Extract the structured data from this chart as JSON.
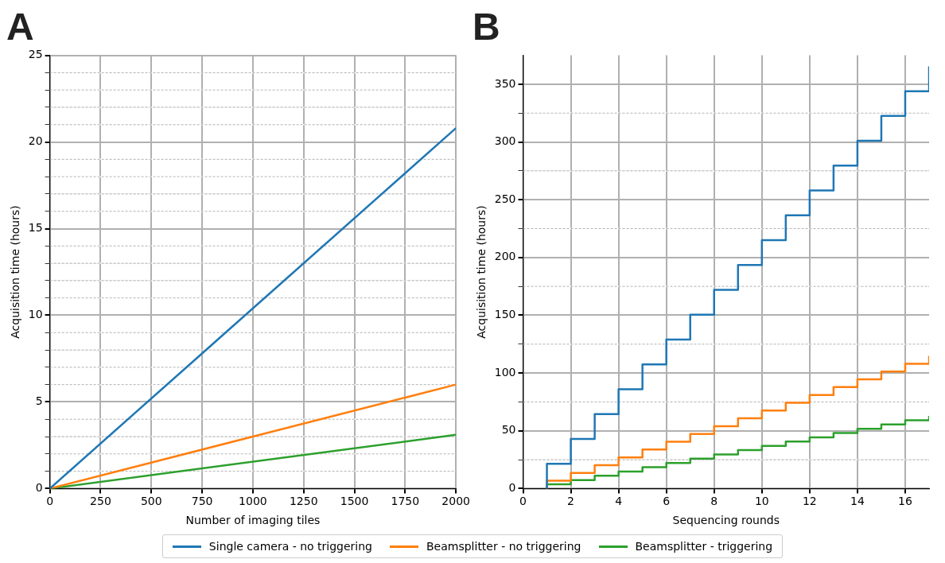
{
  "chart_data": [
    {
      "type": "line",
      "title": "A",
      "xlabel": "Number of imaging tiles",
      "ylabel": "Acquisition time (hours)",
      "x": [
        0,
        2000
      ],
      "xlim": [
        0,
        2000
      ],
      "xticks": [
        0,
        250,
        500,
        750,
        1000,
        1250,
        1500,
        1750,
        2000
      ],
      "ylim": [
        0,
        25
      ],
      "yticks": [
        0,
        {
          "value": 1,
          "label": null
        },
        {
          "value": 2,
          "label": null
        },
        {
          "value": 3,
          "label": null
        },
        {
          "value": 4,
          "label": null
        },
        5,
        {
          "value": 6,
          "label": null
        },
        {
          "value": 7,
          "label": null
        },
        {
          "value": 8,
          "label": null
        },
        {
          "value": 9,
          "label": null
        },
        10,
        {
          "value": 11,
          "label": null
        },
        {
          "value": 12,
          "label": null
        },
        {
          "value": 13,
          "label": null
        },
        {
          "value": 14,
          "label": null
        },
        15,
        {
          "value": 16,
          "label": null
        },
        {
          "value": 17,
          "label": null
        },
        {
          "value": 18,
          "label": null
        },
        {
          "value": 19,
          "label": null
        },
        20,
        {
          "value": 21,
          "label": null
        },
        {
          "value": 22,
          "label": null
        },
        {
          "value": 23,
          "label": null
        },
        {
          "value": 24,
          "label": null
        },
        25
      ],
      "grid": true,
      "legend": "bottom",
      "series": [
        {
          "name": "Single camera - no triggering",
          "color": "#1f77b4",
          "values": [
            0,
            20.8
          ]
        },
        {
          "name": "Beamsplitter - no triggering",
          "color": "#ff7f0e",
          "values": [
            0,
            6.0
          ]
        },
        {
          "name": "Beamsplitter - triggering",
          "color": "#2ca02c",
          "values": [
            0,
            3.1
          ]
        }
      ]
    },
    {
      "type": "step",
      "title": "B",
      "xlabel": "Sequencing rounds",
      "ylabel": "Acquisition time (hours)",
      "x": [
        1,
        1,
        2,
        3,
        4,
        5,
        6,
        7,
        8,
        9,
        10,
        11,
        12,
        13,
        14,
        15,
        16,
        17
      ],
      "xlim": [
        0,
        17
      ],
      "xticks": [
        0,
        2,
        4,
        6,
        8,
        10,
        12,
        14,
        16
      ],
      "ylim": [
        0,
        375
      ],
      "yticks": [
        0,
        {
          "value": 25,
          "label": null
        },
        50,
        {
          "value": 75,
          "label": null
        },
        100,
        {
          "value": 125,
          "label": null
        },
        150,
        {
          "value": 175,
          "label": null
        },
        200,
        {
          "value": 225,
          "label": null
        },
        250,
        {
          "value": 275,
          "label": null
        },
        300,
        {
          "value": 325,
          "label": null
        },
        350
      ],
      "grid": true,
      "series": [
        {
          "color": "#1f77b4",
          "values": [
            0,
            21.5,
            43,
            64.5,
            86,
            107.5,
            129,
            150.5,
            172,
            193.5,
            215,
            236.5,
            258,
            279.5,
            301,
            322.5,
            344,
            365.5
          ]
        },
        {
          "color": "#ff7f0e",
          "values": [
            0,
            6.8,
            13.5,
            20.3,
            27,
            33.8,
            40.5,
            47.3,
            54,
            60.8,
            67.5,
            74.3,
            81,
            87.8,
            94.5,
            101.3,
            108,
            114.8
          ]
        },
        {
          "color": "#2ca02c",
          "values": [
            0,
            3.7,
            7.4,
            11.1,
            14.8,
            18.5,
            22.2,
            25.9,
            29.6,
            33.3,
            37,
            40.7,
            44.4,
            48.1,
            51.8,
            55.5,
            59.2,
            62.9
          ]
        }
      ]
    }
  ]
}
